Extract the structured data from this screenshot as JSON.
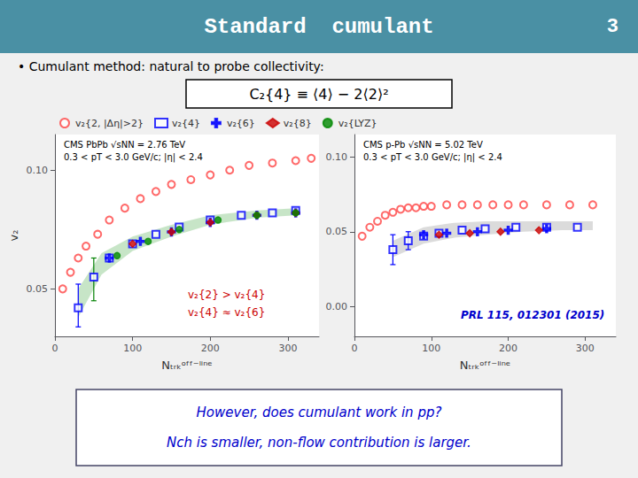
{
  "title": "Standard  cumulant",
  "annotations": [
    {
      "text": "3"
    },
    {
      "text": "• Cumulant method: natural to probe collectivity:"
    },
    {
      "text": "C₂{4} ≡ ⟨4⟩ − 2⟨2⟩²"
    },
    {
      "text": "However, does cumulant work in pp?",
      "color": "#0000cc"
    },
    {
      "text": "Nch is smaller, non-flow contribution is larger.",
      "color": "#0000cc"
    }
  ],
  "chart_data": [
    {
      "type": "scatter",
      "xlabel": "Nₜᵣₖᵒᶠᶠ⁻ˡⁱⁿᵉ",
      "ylabel": "v₂",
      "xlim": [
        0,
        340
      ],
      "ylim": [
        0.03,
        0.115
      ],
      "xticks": [
        0,
        100,
        200,
        300
      ],
      "yticks": [
        0.05,
        {
          "value": 0.1,
          "label": "0.10"
        }
      ],
      "grid": false,
      "legend": "top",
      "annotations": [
        {
          "text": "CMS PbPb √sNN = 2.76 TeV"
        },
        {
          "text": "0.3 < pT < 3.0 GeV/c; |η| < 2.4"
        },
        {
          "text": "v₂{2} > v₂{4}",
          "color": "#cc0000"
        },
        {
          "text": "v₂{4} ≈ v₂{6}",
          "color": "#cc0000"
        }
      ],
      "series": [
        {
          "type": "band",
          "color": "#44aa44",
          "x": [
            30,
            60,
            100,
            150,
            200,
            260,
            310
          ],
          "low": [
            0.038,
            0.056,
            0.066,
            0.072,
            0.077,
            0.08,
            0.081
          ],
          "high": [
            0.05,
            0.065,
            0.072,
            0.077,
            0.081,
            0.083,
            0.084
          ]
        },
        {
          "name": "v₂{2, |Δη|>2}",
          "color": "#ff4444",
          "marker": "open_circle",
          "x": [
            10,
            20,
            30,
            40,
            55,
            70,
            90,
            110,
            130,
            150,
            175,
            200,
            225,
            250,
            280,
            310,
            330
          ],
          "values": [
            0.05,
            0.057,
            0.063,
            0.068,
            0.073,
            0.079,
            0.084,
            0.088,
            0.091,
            0.094,
            0.096,
            0.098,
            0.1,
            0.102,
            0.103,
            0.104,
            0.105
          ]
        },
        {
          "name": "v₂{4}",
          "color": "blue",
          "marker": "open_square",
          "x": [
            30,
            50,
            70,
            100,
            130,
            160,
            200,
            240,
            280,
            310
          ],
          "values": [
            0.042,
            0.055,
            0.063,
            0.069,
            0.073,
            0.076,
            0.079,
            0.081,
            0.082,
            0.083
          ],
          "error_low": [
            0.008,
            null,
            null,
            null,
            null,
            null,
            null,
            null,
            null,
            null
          ],
          "error_high": [
            0.01,
            null,
            null,
            null,
            null,
            null,
            null,
            null,
            null,
            null
          ]
        },
        {
          "type": "errorbar",
          "color": "green",
          "marker": "none",
          "x": [
            50
          ],
          "values": [
            0.055
          ],
          "error_low": [
            0.01
          ],
          "error_high": [
            0.008
          ]
        },
        {
          "name": "v₂{6}",
          "color": "blue",
          "marker": "plus",
          "x": [
            70,
            110,
            150,
            200,
            260,
            310
          ],
          "values": [
            0.063,
            0.07,
            0.074,
            0.078,
            0.081,
            0.082
          ]
        },
        {
          "name": "v₂{8}",
          "color": "#cc0000",
          "marker": "diamond",
          "x": [
            100,
            150,
            200,
            260,
            310
          ],
          "values": [
            0.069,
            0.074,
            0.078,
            0.081,
            0.082
          ]
        },
        {
          "name": "v₂{LYZ}",
          "color": "#008800",
          "marker": "circle",
          "x": [
            80,
            120,
            160,
            210,
            260,
            310
          ],
          "values": [
            0.064,
            0.07,
            0.075,
            0.079,
            0.081,
            0.082
          ]
        }
      ]
    },
    {
      "type": "scatter",
      "xlabel": "Nₜᵣₖᵒᶠᶠ⁻ˡⁱⁿᵉ",
      "xlim": [
        0,
        340
      ],
      "ylim": [
        -0.02,
        0.115
      ],
      "xticks": [
        0,
        100,
        200,
        300
      ],
      "yticks": [
        {
          "value": 0,
          "label": "0.00"
        },
        0.05,
        {
          "value": 0.1,
          "label": "0.10"
        }
      ],
      "grid": false,
      "annotations": [
        {
          "text": "CMS p-Pb √sNN = 5.02 TeV"
        },
        {
          "text": "0.3 < pT < 3.0 GeV/c; |η| < 2.4"
        },
        {
          "text": "PRL 115, 012301 (2015)",
          "color": "#0000cc"
        }
      ],
      "series": [
        {
          "type": "band",
          "color": "#888888",
          "x": [
            50,
            90,
            130,
            170,
            220,
            270,
            310
          ],
          "low": [
            0.033,
            0.042,
            0.046,
            0.048,
            0.05,
            0.051,
            0.051
          ],
          "high": [
            0.044,
            0.053,
            0.056,
            0.057,
            0.057,
            0.057,
            0.057
          ]
        },
        {
          "color": "#ff4444",
          "marker": "open_circle",
          "x": [
            10,
            20,
            30,
            40,
            50,
            60,
            70,
            80,
            90,
            100,
            120,
            140,
            160,
            180,
            200,
            220,
            250,
            280,
            310
          ],
          "values": [
            0.047,
            0.053,
            0.057,
            0.061,
            0.063,
            0.065,
            0.066,
            0.066,
            0.067,
            0.067,
            0.068,
            0.068,
            0.068,
            0.068,
            0.068,
            0.068,
            0.068,
            0.068,
            0.068
          ]
        },
        {
          "color": "blue",
          "marker": "open_square",
          "x": [
            50,
            70,
            90,
            110,
            140,
            170,
            210,
            250,
            290
          ],
          "values": [
            0.038,
            0.044,
            0.047,
            0.049,
            0.051,
            0.052,
            0.053,
            0.053,
            0.053
          ],
          "error_low": [
            0.01,
            0.006,
            null,
            null,
            null,
            null,
            null,
            null,
            null
          ],
          "error_high": [
            0.01,
            0.006,
            null,
            null,
            null,
            null,
            null,
            null,
            null
          ]
        },
        {
          "color": "blue",
          "marker": "plus",
          "x": [
            90,
            120,
            160,
            200,
            250
          ],
          "values": [
            0.048,
            0.049,
            0.05,
            0.051,
            0.052
          ]
        },
        {
          "color": "#cc0000",
          "marker": "diamond",
          "x": [
            110,
            150,
            190,
            240
          ],
          "values": [
            0.048,
            0.049,
            0.05,
            0.051
          ]
        }
      ]
    }
  ]
}
